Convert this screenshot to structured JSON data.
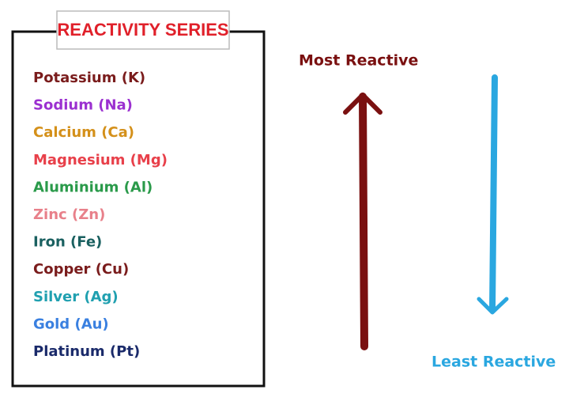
{
  "title": "REACTIVITY SERIES",
  "elements": [
    {
      "label": "Potassium (K)",
      "color": "#7a1c1c"
    },
    {
      "label": "Sodium (Na)",
      "color": "#9b30d0"
    },
    {
      "label": "Calcium (Ca)",
      "color": "#d4901a"
    },
    {
      "label": "Magnesium (Mg)",
      "color": "#e8404a"
    },
    {
      "label": "Aluminium (Al)",
      "color": "#2a9a4a"
    },
    {
      "label": "Zinc (Zn)",
      "color": "#e8808a"
    },
    {
      "label": "Iron (Fe)",
      "color": "#1a6060"
    },
    {
      "label": "Copper (Cu)",
      "color": "#7a1c1c"
    },
    {
      "label": "Silver (Ag)",
      "color": "#20a0b0"
    },
    {
      "label": "Gold (Au)",
      "color": "#3a80e0"
    },
    {
      "label": "Platinum (Pt)",
      "color": "#1a2a6a"
    }
  ],
  "most_reactive": "Most Reactive",
  "least_reactive": "Least Reactive"
}
